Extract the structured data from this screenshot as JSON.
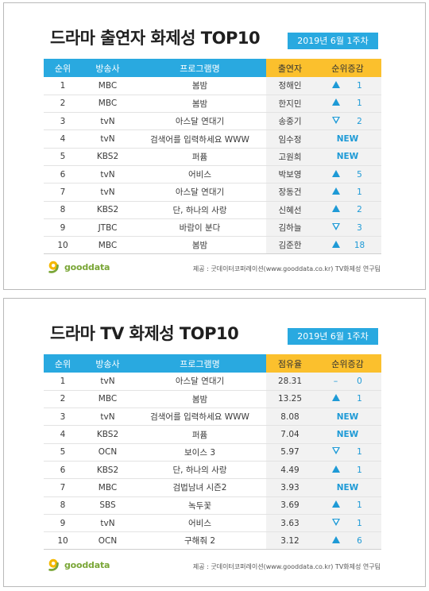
{
  "panel1": {
    "title": "드라마 출연자 화제성 TOP10",
    "week": "2019년  6월 1주차",
    "headers": [
      "순위",
      "방송사",
      "프로그램명",
      "출연자",
      "순위증감"
    ],
    "rows": [
      {
        "rank": "1",
        "channel": "MBC",
        "program": "봄밤",
        "value": "정해인",
        "change": {
          "dir": "up",
          "num": "1"
        }
      },
      {
        "rank": "2",
        "channel": "MBC",
        "program": "봄밤",
        "value": "한지민",
        "change": {
          "dir": "up",
          "num": "1"
        }
      },
      {
        "rank": "3",
        "channel": "tvN",
        "program": "아스달 연대기",
        "value": "송중기",
        "change": {
          "dir": "down",
          "num": "2"
        }
      },
      {
        "rank": "4",
        "channel": "tvN",
        "program": "검색어를 입력하세요 WWW",
        "value": "임수정",
        "change": {
          "dir": "new",
          "num": "NEW"
        }
      },
      {
        "rank": "5",
        "channel": "KBS2",
        "program": "퍼퓸",
        "value": "고원희",
        "change": {
          "dir": "new",
          "num": "NEW"
        }
      },
      {
        "rank": "6",
        "channel": "tvN",
        "program": "어비스",
        "value": "박보영",
        "change": {
          "dir": "up",
          "num": "5"
        }
      },
      {
        "rank": "7",
        "channel": "tvN",
        "program": "아스달 연대기",
        "value": "장동건",
        "change": {
          "dir": "up",
          "num": "1"
        }
      },
      {
        "rank": "8",
        "channel": "KBS2",
        "program": "단, 하나의 사랑",
        "value": "신혜선",
        "change": {
          "dir": "up",
          "num": "2"
        }
      },
      {
        "rank": "9",
        "channel": "JTBC",
        "program": "바람이 분다",
        "value": "김하늘",
        "change": {
          "dir": "down",
          "num": "3"
        }
      },
      {
        "rank": "10",
        "channel": "MBC",
        "program": "봄밤",
        "value": "김준한",
        "change": {
          "dir": "up",
          "num": "18"
        }
      }
    ],
    "logo_text": "gooddata",
    "source": "제공 : 굿데이터코퍼레이션(www.gooddata.co.kr) TV화제성 연구팀"
  },
  "panel2": {
    "title": "드라마 TV 화제성 TOP10",
    "week": "2019년  6월 1주차",
    "headers": [
      "순위",
      "방송사",
      "프로그램명",
      "점유율",
      "순위증감"
    ],
    "rows": [
      {
        "rank": "1",
        "channel": "tvN",
        "program": "아스달 연대기",
        "value": "28.31",
        "change": {
          "dir": "same",
          "num": "0"
        }
      },
      {
        "rank": "2",
        "channel": "MBC",
        "program": "봄밤",
        "value": "13.25",
        "change": {
          "dir": "up",
          "num": "1"
        }
      },
      {
        "rank": "3",
        "channel": "tvN",
        "program": "검색어를 입력하세요 WWW",
        "value": "8.08",
        "change": {
          "dir": "new",
          "num": "NEW"
        }
      },
      {
        "rank": "4",
        "channel": "KBS2",
        "program": "퍼퓸",
        "value": "7.04",
        "change": {
          "dir": "new",
          "num": "NEW"
        }
      },
      {
        "rank": "5",
        "channel": "OCN",
        "program": "보이스 3",
        "value": "5.97",
        "change": {
          "dir": "down",
          "num": "1"
        }
      },
      {
        "rank": "6",
        "channel": "KBS2",
        "program": "단, 하나의 사랑",
        "value": "4.49",
        "change": {
          "dir": "up",
          "num": "1"
        }
      },
      {
        "rank": "7",
        "channel": "MBC",
        "program": "검법남녀 시즌2",
        "value": "3.93",
        "change": {
          "dir": "new",
          "num": "NEW"
        }
      },
      {
        "rank": "8",
        "channel": "SBS",
        "program": "녹두꽃",
        "value": "3.69",
        "change": {
          "dir": "up",
          "num": "1"
        }
      },
      {
        "rank": "9",
        "channel": "tvN",
        "program": "어비스",
        "value": "3.63",
        "change": {
          "dir": "down",
          "num": "1"
        }
      },
      {
        "rank": "10",
        "channel": "OCN",
        "program": "구해줘 2",
        "value": "3.12",
        "change": {
          "dir": "up",
          "num": "6"
        }
      }
    ],
    "logo_text": "gooddata",
    "source": "제공 : 굿데이터코퍼레이션(www.gooddata.co.kr) TV화제성 연구팀"
  },
  "colors": {
    "header_blue": "#29a9e0",
    "header_yellow": "#fbc02d",
    "change_blue": "#1e9ad6",
    "logo_green": "#7aa637",
    "logo_yellow": "#f5b800"
  },
  "icons": {
    "up": "triangle-up-icon",
    "down": "triangle-down-outline-icon",
    "same": "dash-icon"
  }
}
